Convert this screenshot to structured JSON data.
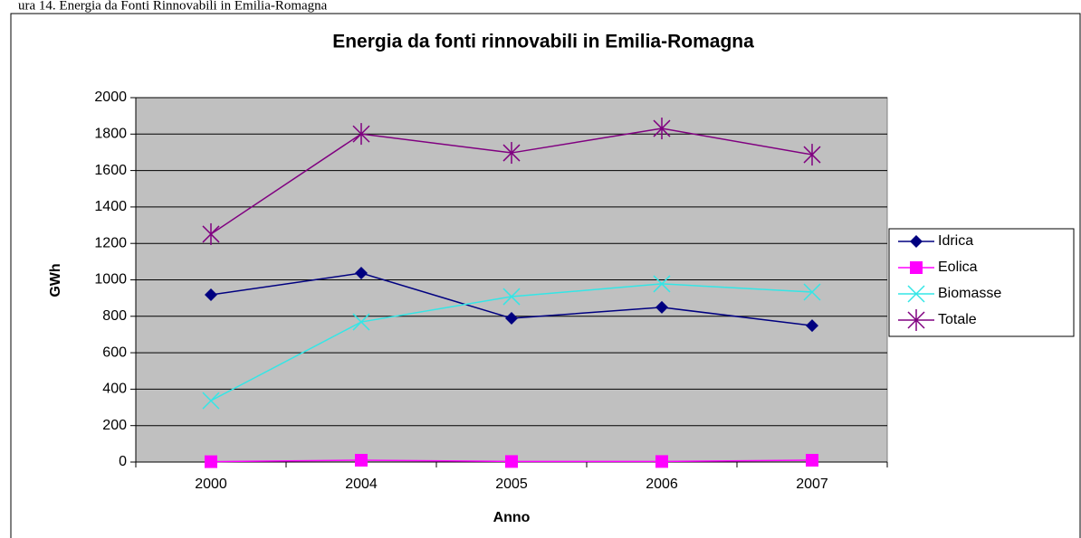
{
  "caption": "ura 14. Energia da Fonti Rinnovabili in Emilia-Romagna",
  "chart_data": {
    "type": "line",
    "title": "Energia da fonti rinnovabili in Emilia-Romagna",
    "x_label": "Anno",
    "y_label": "GWh",
    "categories": [
      "2000",
      "2004",
      "2005",
      "2006",
      "2007"
    ],
    "series": [
      {
        "name": "Idrica",
        "color": "#000080",
        "marker": "diamond",
        "values": [
          918,
          1037,
          789,
          849,
          749
        ]
      },
      {
        "name": "Eolica",
        "color": "#ff00ff",
        "marker": "square",
        "values": [
          2,
          10,
          3,
          3,
          10
        ]
      },
      {
        "name": "Biomasse",
        "color": "#33e6e6",
        "marker": "x",
        "values": [
          337,
          769,
          908,
          978,
          933
        ]
      },
      {
        "name": "Totale",
        "color": "#800080",
        "marker": "star",
        "values": [
          1251,
          1801,
          1697,
          1831,
          1687
        ]
      }
    ],
    "ylim": [
      0,
      2000
    ],
    "yticks": [
      0,
      200,
      400,
      600,
      800,
      1000,
      1200,
      1400,
      1600,
      1800,
      2000
    ],
    "grid": true,
    "plot_background": "#c0c0c0",
    "legend": "right"
  }
}
